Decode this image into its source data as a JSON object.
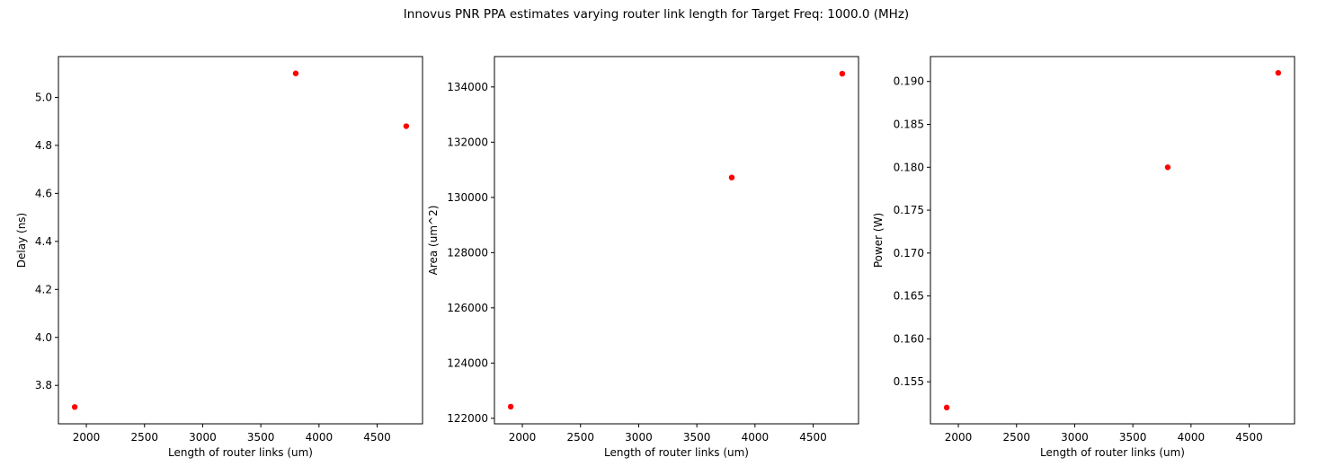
{
  "figure": {
    "suptitle": "Innovus PNR PPA estimates varying router link length for Target Freq: 1000.0 (MHz)"
  },
  "colors": {
    "marker": "#ff0000",
    "axes": "#000000",
    "background": "#ffffff"
  },
  "chart_data": [
    {
      "type": "scatter",
      "xlabel": "Length of router links (um)",
      "ylabel": "Delay (ns)",
      "x": [
        1900,
        3800,
        4750
      ],
      "y": [
        3.71,
        5.1,
        4.88
      ],
      "xlim": [
        1760,
        4890
      ],
      "ylim": [
        3.64,
        5.17
      ],
      "xticks": [
        2000,
        2500,
        3000,
        3500,
        4000,
        4500
      ],
      "xtick_labels": [
        "2000",
        "2500",
        "3000",
        "3500",
        "4000",
        "4500"
      ],
      "yticks": [
        3.8,
        4.0,
        4.2,
        4.4,
        4.6,
        4.8,
        5.0
      ],
      "ytick_labels": [
        "3.8",
        "4.0",
        "4.2",
        "4.4",
        "4.6",
        "4.8",
        "5.0"
      ],
      "grid": false,
      "legend": false
    },
    {
      "type": "scatter",
      "xlabel": "Length of router links (um)",
      "ylabel": "Area (um^2)",
      "x": [
        1900,
        3800,
        4750
      ],
      "y": [
        122420,
        130720,
        134480
      ],
      "xlim": [
        1760,
        4890
      ],
      "ylim": [
        121800,
        135100
      ],
      "xticks": [
        2000,
        2500,
        3000,
        3500,
        4000,
        4500
      ],
      "xtick_labels": [
        "2000",
        "2500",
        "3000",
        "3500",
        "4000",
        "4500"
      ],
      "yticks": [
        122000,
        124000,
        126000,
        128000,
        130000,
        132000,
        134000
      ],
      "ytick_labels": [
        "122000",
        "124000",
        "126000",
        "128000",
        "130000",
        "132000",
        "134000"
      ],
      "grid": false,
      "legend": false
    },
    {
      "type": "scatter",
      "xlabel": "Length of router links (um)",
      "ylabel": "Power (W)",
      "x": [
        1900,
        3800,
        4750
      ],
      "y": [
        0.152,
        0.18,
        0.191
      ],
      "xlim": [
        1760,
        4890
      ],
      "ylim": [
        0.1501,
        0.1929
      ],
      "xticks": [
        2000,
        2500,
        3000,
        3500,
        4000,
        4500
      ],
      "xtick_labels": [
        "2000",
        "2500",
        "3000",
        "3500",
        "4000",
        "4500"
      ],
      "yticks": [
        0.155,
        0.16,
        0.165,
        0.17,
        0.175,
        0.18,
        0.185,
        0.19
      ],
      "ytick_labels": [
        "0.155",
        "0.160",
        "0.165",
        "0.170",
        "0.175",
        "0.180",
        "0.185",
        "0.190"
      ],
      "grid": false,
      "legend": false
    }
  ]
}
